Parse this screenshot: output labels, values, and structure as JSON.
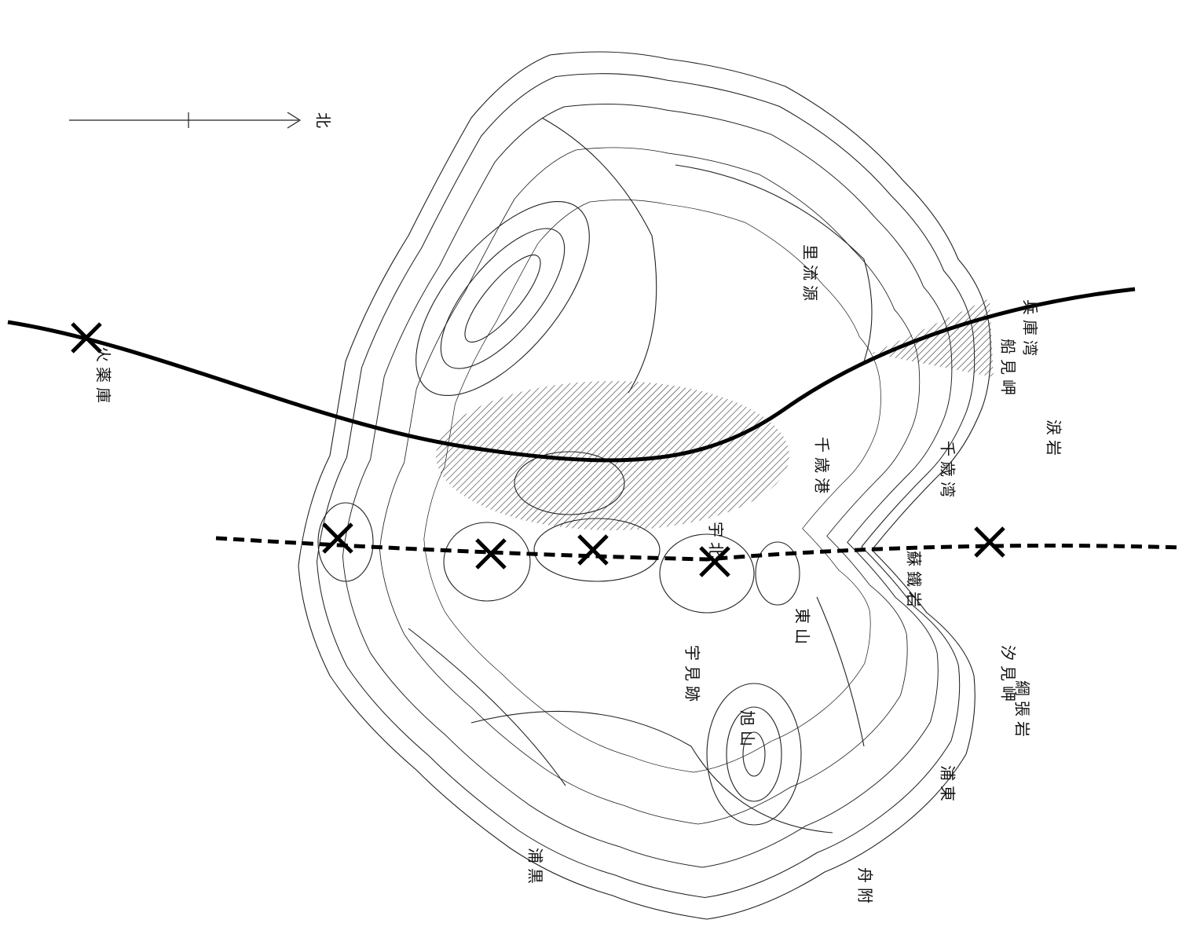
{
  "north_label": "北",
  "labels": [
    {
      "text": "兵庫湾"
    },
    {
      "text": "船見岬"
    },
    {
      "text": "涙岩"
    },
    {
      "text": "千歳湾"
    },
    {
      "text": "千歳港"
    },
    {
      "text": "蘇鐵岩"
    },
    {
      "text": "汐見岬"
    },
    {
      "text": "綱張岩"
    },
    {
      "text": "浦東"
    },
    {
      "text": "舟附"
    },
    {
      "text": "浦黒"
    },
    {
      "text": "旭山"
    },
    {
      "text": "東山"
    },
    {
      "text": "宇北"
    },
    {
      "text": "宇見跡"
    },
    {
      "text": "里流源"
    },
    {
      "text": "火薬庫"
    }
  ]
}
